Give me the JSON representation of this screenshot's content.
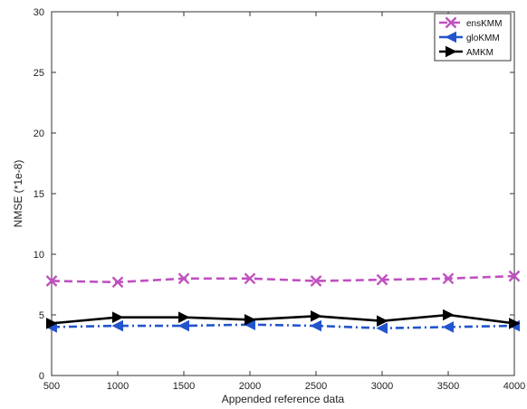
{
  "chart_data": {
    "type": "line",
    "title": "",
    "xlabel": "Appended reference data",
    "ylabel": "NMSE (*1e-8)",
    "xlim": [
      500,
      4000
    ],
    "ylim": [
      0,
      30
    ],
    "x_ticks": [
      500,
      1000,
      1500,
      2000,
      2500,
      3000,
      3500,
      4000
    ],
    "y_ticks": [
      0,
      5,
      10,
      15,
      20,
      25,
      30
    ],
    "grid": false,
    "legend": "top-right",
    "x": [
      500,
      1000,
      1500,
      2000,
      2500,
      3000,
      3500,
      4000
    ],
    "series": [
      {
        "name": "ensKMM",
        "values": [
          7.8,
          7.7,
          8.0,
          8.0,
          7.8,
          7.9,
          8.0,
          8.2
        ],
        "color": "#c050c0",
        "line_style": "dashed",
        "marker": "x"
      },
      {
        "name": "gloKMM",
        "values": [
          4.0,
          4.1,
          4.1,
          4.2,
          4.1,
          3.9,
          4.0,
          4.1
        ],
        "color": "#2255cc",
        "line_style": "dashdot",
        "marker": "triangle-left"
      },
      {
        "name": "AMKM",
        "values": [
          4.3,
          4.8,
          4.8,
          4.6,
          4.9,
          4.5,
          5.0,
          4.3
        ],
        "color": "#000000",
        "line_style": "solid",
        "marker": "triangle-right"
      }
    ]
  }
}
